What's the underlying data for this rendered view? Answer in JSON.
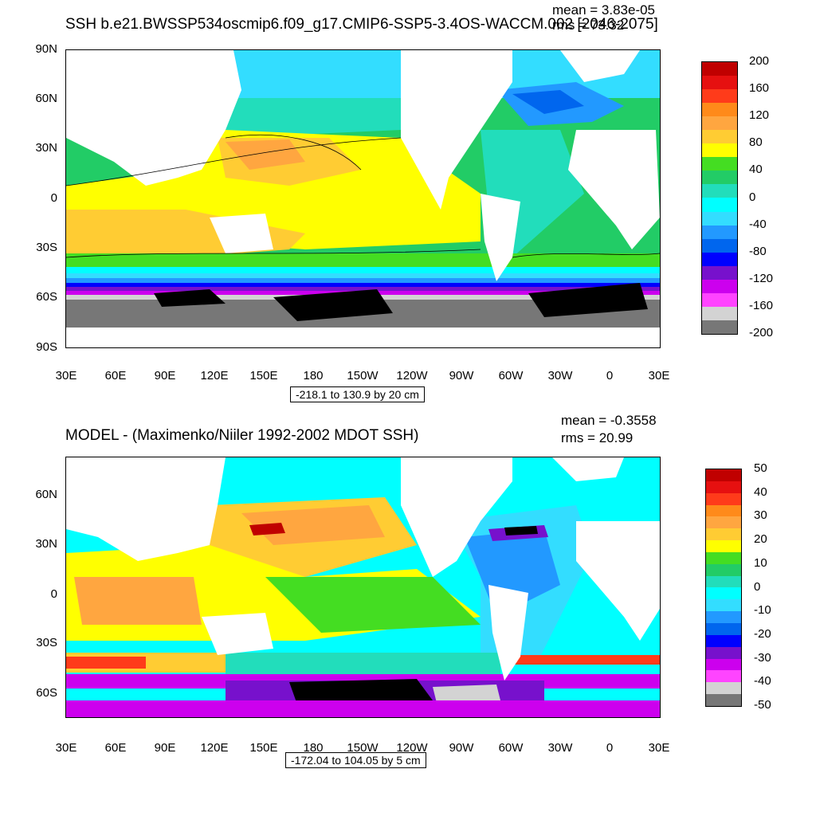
{
  "panel1": {
    "title": "SSH b.e21.BWSSP534oscmip6.f09_g17.CMIP6-SSP5-3.4OS-WACCM.002 [2046-2075]",
    "mean": "mean = 3.83e-05",
    "rms": "rms = 73.32",
    "contour_info": "-218.1 to 130.9 by 20 cm",
    "y_ticks": [
      "90N",
      "60N",
      "30N",
      "0",
      "30S",
      "60S",
      "90S"
    ],
    "x_ticks": [
      "30E",
      "60E",
      "90E",
      "120E",
      "150E",
      "180",
      "150W",
      "120W",
      "90W",
      "60W",
      "30W",
      "0",
      "30E"
    ],
    "colorbar": {
      "labels": [
        "200",
        "160",
        "120",
        "80",
        "40",
        "0",
        "-40",
        "-80",
        "-120",
        "-160",
        "-200"
      ],
      "colors": [
        "#c00000",
        "#e61010",
        "#ff3b1a",
        "#ff8a1a",
        "#ffa640",
        "#ffcc33",
        "#ffff00",
        "#44dd22",
        "#22cc66",
        "#22ddbb",
        "#00ffff",
        "#33ddff",
        "#2299ff",
        "#0066ee",
        "#0000ff",
        "#7711cc",
        "#cc00ee",
        "#ff44ff",
        "#d3d3d3",
        "#777777"
      ]
    }
  },
  "panel2": {
    "title": "MODEL - (Maximenko/Niiler 1992-2002 MDOT SSH)",
    "mean": "mean = -0.3558",
    "rms": "rms = 20.99",
    "contour_info": "-172.04 to 104.05 by 5 cm",
    "y_ticks": [
      "60N",
      "30N",
      "0",
      "30S",
      "60S"
    ],
    "x_ticks": [
      "30E",
      "60E",
      "90E",
      "120E",
      "150E",
      "180",
      "150W",
      "120W",
      "90W",
      "60W",
      "30W",
      "0",
      "30E"
    ],
    "colorbar": {
      "labels": [
        "50",
        "40",
        "30",
        "20",
        "10",
        "0",
        "-10",
        "-20",
        "-30",
        "-40",
        "-50"
      ],
      "colors": [
        "#c00000",
        "#e61010",
        "#ff3b1a",
        "#ff8a1a",
        "#ffa640",
        "#ffcc33",
        "#ffff00",
        "#44dd22",
        "#22cc66",
        "#22ddbb",
        "#00ffff",
        "#33ddff",
        "#2299ff",
        "#0066ee",
        "#0000ff",
        "#7711cc",
        "#cc00ee",
        "#ff44ff",
        "#d3d3d3",
        "#777777"
      ]
    }
  }
}
